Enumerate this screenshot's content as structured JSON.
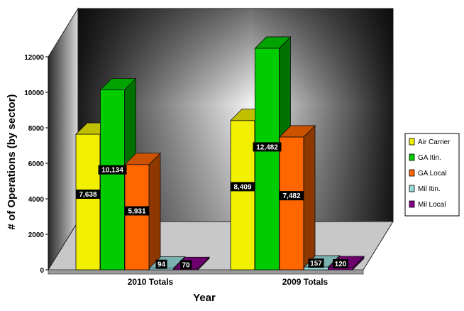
{
  "chart_data": {
    "type": "bar",
    "title": "",
    "xlabel": "Year",
    "ylabel": "# of Operations (by sector)",
    "categories": [
      "2010 Totals",
      "2009 Totals"
    ],
    "ylim": [
      0,
      12000
    ],
    "yticks": [
      "0",
      "2000",
      "4000",
      "6000",
      "8000",
      "10000",
      "12000"
    ],
    "series": [
      {
        "name": "Air Carrier",
        "values": [
          7638,
          8409
        ],
        "labels": [
          "7,638",
          "8,409"
        ],
        "color": "#f0f000"
      },
      {
        "name": "GA Itin.",
        "values": [
          10134,
          12482
        ],
        "labels": [
          "10,134",
          "12,482"
        ],
        "color": "#00cc00"
      },
      {
        "name": "GA Local",
        "values": [
          5931,
          7482
        ],
        "labels": [
          "5,931",
          "7,482"
        ],
        "color": "#ff6600"
      },
      {
        "name": "Mil Itin.",
        "values": [
          94,
          157
        ],
        "labels": [
          "94",
          "157"
        ],
        "color": "#99dddd"
      },
      {
        "name": "Mil Local",
        "values": [
          70,
          120
        ],
        "labels": [
          "70",
          "120"
        ],
        "color": "#880088"
      }
    ],
    "legend_position": "right",
    "grid": false,
    "style": "3d-column"
  }
}
